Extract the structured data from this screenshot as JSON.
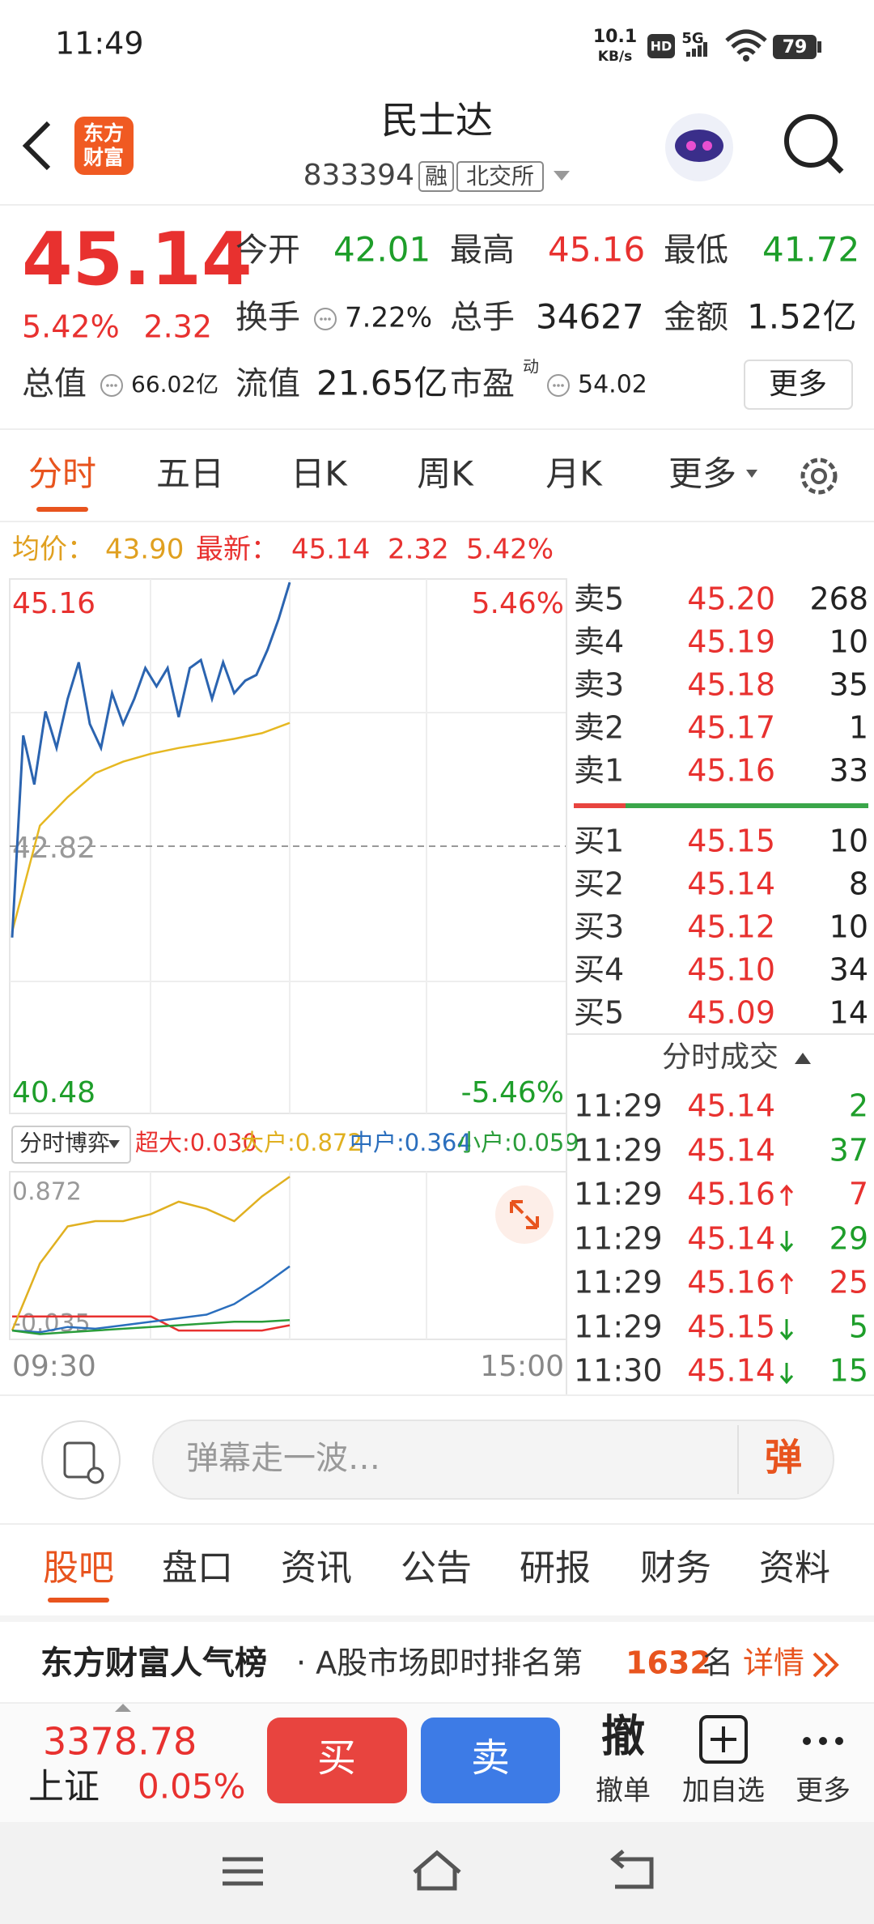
{
  "status": {
    "time": "11:49",
    "speed": "10.1",
    "speed_unit": "KB/s",
    "hd": "HD",
    "network": "5G",
    "battery": "79"
  },
  "header": {
    "logo": [
      "东方",
      "财富"
    ],
    "title": "民士达",
    "code": "833394",
    "tags": [
      "融",
      "北交所"
    ]
  },
  "quote": {
    "price": "45.14",
    "change_pct": "5.42%",
    "change": "2.32",
    "more": "更多",
    "fields": [
      {
        "label": "今开",
        "value": "42.01",
        "color": "green"
      },
      {
        "label": "最高",
        "value": "45.16",
        "color": "red"
      },
      {
        "label": "最低",
        "value": "41.72",
        "color": "green"
      },
      {
        "label": "换手",
        "value": "7.22%",
        "info": true
      },
      {
        "label": "总手",
        "value": "34627"
      },
      {
        "label": "金额",
        "value": "1.52亿"
      },
      {
        "label": "总值",
        "value": "66.02亿",
        "info": true
      },
      {
        "label": "流值",
        "value": "21.65亿"
      },
      {
        "label": "市盈",
        "sup": "动",
        "value": "54.02",
        "info": true
      }
    ]
  },
  "tabs": {
    "items": [
      "分时",
      "五日",
      "日K",
      "周K",
      "月K",
      "更多"
    ],
    "active": 0
  },
  "summary": {
    "avg_label": "均价：",
    "avg": "43.90",
    "last_label": "最新：",
    "last": "45.14",
    "change": "2.32",
    "change_pct": "5.42%"
  },
  "chart": {
    "ylim": [
      40.48,
      45.16
    ],
    "yticks": [
      40.48,
      42.82,
      45.16
    ],
    "pct_ticks": [
      {
        "value": 40.48,
        "label": "-5.46%"
      },
      {
        "value": 45.16,
        "label": "5.46%"
      }
    ],
    "price_color": "#2b64b0",
    "avg_color": "#e6b822",
    "price": [
      42.02,
      43.79,
      43.36,
      44.0,
      43.68,
      44.11,
      44.43,
      43.89,
      43.68,
      44.16,
      43.89,
      44.11,
      44.38,
      44.22,
      44.38,
      43.95,
      44.38,
      44.45,
      44.11,
      44.43,
      44.16,
      44.27,
      44.32,
      44.54,
      44.81,
      45.13
    ],
    "avg": [
      42.07,
      43.0,
      43.25,
      43.46,
      43.56,
      43.63,
      43.68,
      43.72,
      43.76,
      43.81,
      43.9
    ],
    "times": [
      "09:30",
      "15:00"
    ]
  },
  "flow": {
    "selector": "分时博弈",
    "ylim": [
      -0.05,
      0.9
    ],
    "yticks": [
      -0.035,
      0.872
    ],
    "series": [
      {
        "name": "超大:",
        "label": "0.030",
        "color": "#e8312f",
        "values": [
          0.08,
          0.08,
          0.08,
          0.08,
          0.08,
          0.08,
          0.0,
          0.0,
          0.0,
          0.0,
          0.03
        ]
      },
      {
        "name": "大户:",
        "label": "0.872",
        "color": "#e0b020",
        "values": [
          0.0,
          0.38,
          0.59,
          0.62,
          0.62,
          0.66,
          0.73,
          0.69,
          0.62,
          0.76,
          0.872
        ]
      },
      {
        "name": "中户:",
        "label": "0.364",
        "color": "#2a6ebd",
        "values": [
          0.0,
          -0.01,
          0.02,
          0.01,
          0.03,
          0.05,
          0.07,
          0.09,
          0.15,
          0.25,
          0.364
        ]
      },
      {
        "name": "小户:",
        "label": "0.059",
        "color": "#2a9d3a",
        "values": [
          0.0,
          -0.02,
          -0.01,
          0.0,
          0.01,
          0.02,
          0.03,
          0.04,
          0.05,
          0.05,
          0.059
        ]
      }
    ]
  },
  "order_book": {
    "asks": [
      {
        "label": "卖5",
        "price": "45.20",
        "volume": "268"
      },
      {
        "label": "卖4",
        "price": "45.19",
        "volume": "10"
      },
      {
        "label": "卖3",
        "price": "45.18",
        "volume": "35"
      },
      {
        "label": "卖2",
        "price": "45.17",
        "volume": "1"
      },
      {
        "label": "卖1",
        "price": "45.16",
        "volume": "33"
      }
    ],
    "bids": [
      {
        "label": "买1",
        "price": "45.15",
        "volume": "10"
      },
      {
        "label": "买2",
        "price": "45.14",
        "volume": "8"
      },
      {
        "label": "买3",
        "price": "45.12",
        "volume": "10"
      },
      {
        "label": "买4",
        "price": "45.10",
        "volume": "34"
      },
      {
        "label": "买5",
        "price": "45.09",
        "volume": "14"
      }
    ]
  },
  "trades": {
    "title": "分时成交",
    "rows": [
      {
        "time": "11:29",
        "price": "45.14",
        "volume": "2",
        "side": "sell",
        "arrow": false
      },
      {
        "time": "11:29",
        "price": "45.14",
        "volume": "37",
        "side": "sell",
        "arrow": false
      },
      {
        "time": "11:29",
        "price": "45.16",
        "volume": "7",
        "side": "buy",
        "arrow": true
      },
      {
        "time": "11:29",
        "price": "45.14",
        "volume": "29",
        "side": "sell",
        "arrow": true
      },
      {
        "time": "11:29",
        "price": "45.16",
        "volume": "25",
        "side": "buy",
        "arrow": true
      },
      {
        "time": "11:29",
        "price": "45.15",
        "volume": "5",
        "side": "sell",
        "arrow": true
      },
      {
        "time": "11:30",
        "price": "45.14",
        "volume": "15",
        "side": "sell",
        "arrow": true
      }
    ]
  },
  "comment": {
    "placeholder": "弹幕走一波…",
    "button": "弹"
  },
  "sections": {
    "items": [
      "股吧",
      "盘口",
      "资讯",
      "公告",
      "研报",
      "财务",
      "资料"
    ],
    "active": 0
  },
  "ranking": {
    "title": "东方财富人气榜",
    "text": "· A股市场即时排名第",
    "rank": "1632",
    "suffix": "名",
    "link": "详情"
  },
  "footer": {
    "index_value": "3378.78",
    "index_name": "上证",
    "index_pct": "0.05%",
    "buy": "买",
    "sell": "卖",
    "actions": [
      {
        "icon": "撤",
        "label": "撤单"
      },
      {
        "label": "加自选"
      },
      {
        "label": "更多"
      }
    ]
  }
}
